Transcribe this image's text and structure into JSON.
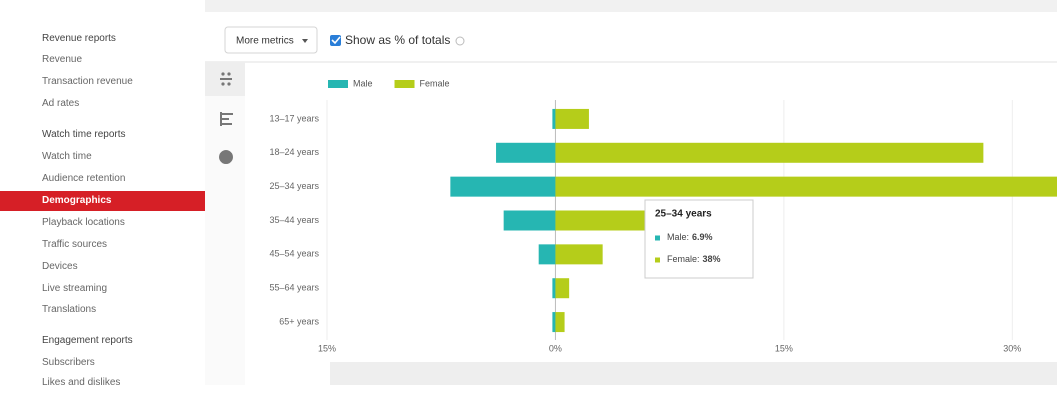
{
  "sidebar": {
    "items": [
      {
        "label": "Revenue reports",
        "heading": true
      },
      {
        "label": "Revenue"
      },
      {
        "label": "Transaction revenue"
      },
      {
        "label": "Ad rates"
      },
      {
        "label": "Watch time reports",
        "heading": true
      },
      {
        "label": "Watch time"
      },
      {
        "label": "Audience retention"
      },
      {
        "label": "Demographics",
        "active": true
      },
      {
        "label": "Playback locations"
      },
      {
        "label": "Traffic sources"
      },
      {
        "label": "Devices"
      },
      {
        "label": "Live streaming"
      },
      {
        "label": "Translations"
      },
      {
        "label": "Engagement reports",
        "heading": true
      },
      {
        "label": "Subscribers"
      },
      {
        "label": "Likes and dislikes"
      }
    ]
  },
  "toolbar": {
    "metrics_button": "More metrics",
    "checkbox_label": "Show as % of totals",
    "checked": true
  },
  "tooltip": {
    "title": "25–34 years",
    "items": [
      {
        "label": "Male:",
        "value": "6.9%",
        "color": "#26b6b2"
      },
      {
        "label": "Female:",
        "value": "38%",
        "color": "#b5cd1a"
      }
    ]
  },
  "chart_data": {
    "type": "butterfly-bar",
    "categories": [
      "13–17 years",
      "18–24 years",
      "25–34 years",
      "35–44 years",
      "45–54 years",
      "55–64 years",
      "65+ years"
    ],
    "series": [
      {
        "name": "Male",
        "color": "#26b6b2",
        "values": [
          -0.2,
          -3.9,
          -6.9,
          -3.4,
          -1.1,
          -0.2,
          -0.2
        ]
      },
      {
        "name": "Female",
        "color": "#b5cd1a",
        "values": [
          2.2,
          28.1,
          38,
          6.2,
          3.1,
          0.9,
          0.6
        ]
      }
    ],
    "xlim": [
      -15,
      33
    ],
    "xticks": [
      {
        "value": -15,
        "label": "15%"
      },
      {
        "value": 0,
        "label": "0%"
      },
      {
        "value": 15,
        "label": "15%"
      },
      {
        "value": 30,
        "label": "30%"
      }
    ],
    "grid": true
  }
}
